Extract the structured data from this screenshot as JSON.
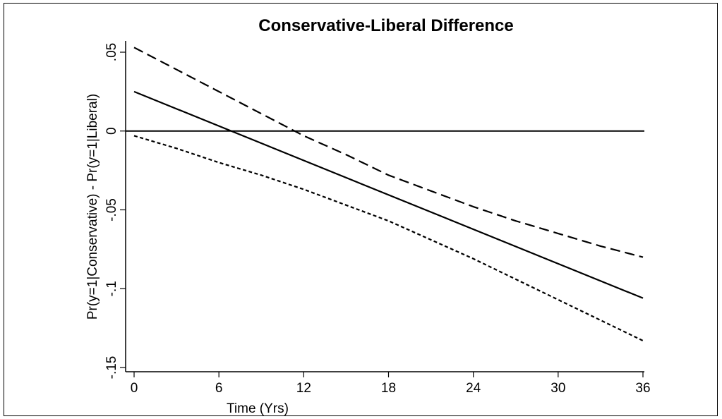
{
  "chart_data": {
    "type": "line",
    "title": "Conservative-Liberal Difference",
    "xlabel": "Time (Yrs)",
    "ylabel": "Pr(y=1|Conservative) - Pr(y=1|Liberal)",
    "xlim": [
      0,
      36
    ],
    "ylim": [
      -0.15,
      0.05
    ],
    "x_ticks": [
      0,
      6,
      12,
      18,
      24,
      30,
      36
    ],
    "x_tick_labels": [
      "0",
      "6",
      "12",
      "18",
      "24",
      "30",
      "36"
    ],
    "y_ticks": [
      0.05,
      0,
      -0.05,
      -0.1,
      -0.15
    ],
    "y_tick_labels": [
      ".05",
      "0",
      "-.05",
      "-.1",
      "-.15"
    ],
    "reference_line": 0,
    "grid": false,
    "series": [
      {
        "style": "solid",
        "x": [
          0,
          36
        ],
        "y": [
          0.025,
          -0.106
        ]
      },
      {
        "style": "long-dash",
        "x": [
          0,
          3,
          6,
          9,
          12,
          15,
          18,
          21,
          24,
          27,
          30,
          33,
          36
        ],
        "y": [
          0.053,
          0.039,
          0.025,
          0.011,
          -0.003,
          -0.015,
          -0.028,
          -0.038,
          -0.048,
          -0.057,
          -0.065,
          -0.073,
          -0.08
        ]
      },
      {
        "style": "short-dash",
        "x": [
          0,
          3,
          6,
          9,
          12,
          15,
          18,
          21,
          24,
          27,
          30,
          33,
          36
        ],
        "y": [
          -0.003,
          -0.011,
          -0.02,
          -0.028,
          -0.037,
          -0.047,
          -0.057,
          -0.069,
          -0.081,
          -0.094,
          -0.107,
          -0.12,
          -0.133
        ]
      }
    ]
  }
}
